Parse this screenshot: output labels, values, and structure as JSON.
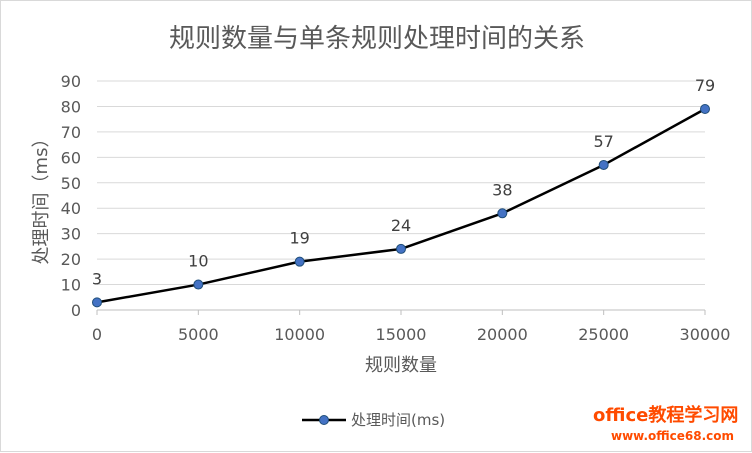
{
  "chart_data": {
    "type": "line",
    "title": "规则数量与单条规则处理时间的关系",
    "xlabel": "规则数量",
    "ylabel": "处理时间（ms）",
    "x": [
      0,
      5000,
      10000,
      15000,
      20000,
      25000,
      30000
    ],
    "x_tick_labels": [
      "0",
      "5000",
      "10000",
      "15000",
      "20000",
      "25000",
      "30000"
    ],
    "ylim": [
      0,
      90
    ],
    "y_ticks": [
      0,
      10,
      20,
      30,
      40,
      50,
      60,
      70,
      80,
      90
    ],
    "grid": true,
    "legend_position": "bottom",
    "series": [
      {
        "name": "处理时间(ms)",
        "values": [
          3,
          10,
          19,
          24,
          38,
          57,
          79
        ],
        "color": "#000000",
        "marker_color": "#4472c4"
      }
    ]
  },
  "watermark": {
    "brand": "office教程学习网",
    "url": "www.office68.com",
    "color": "#ff4b00"
  }
}
